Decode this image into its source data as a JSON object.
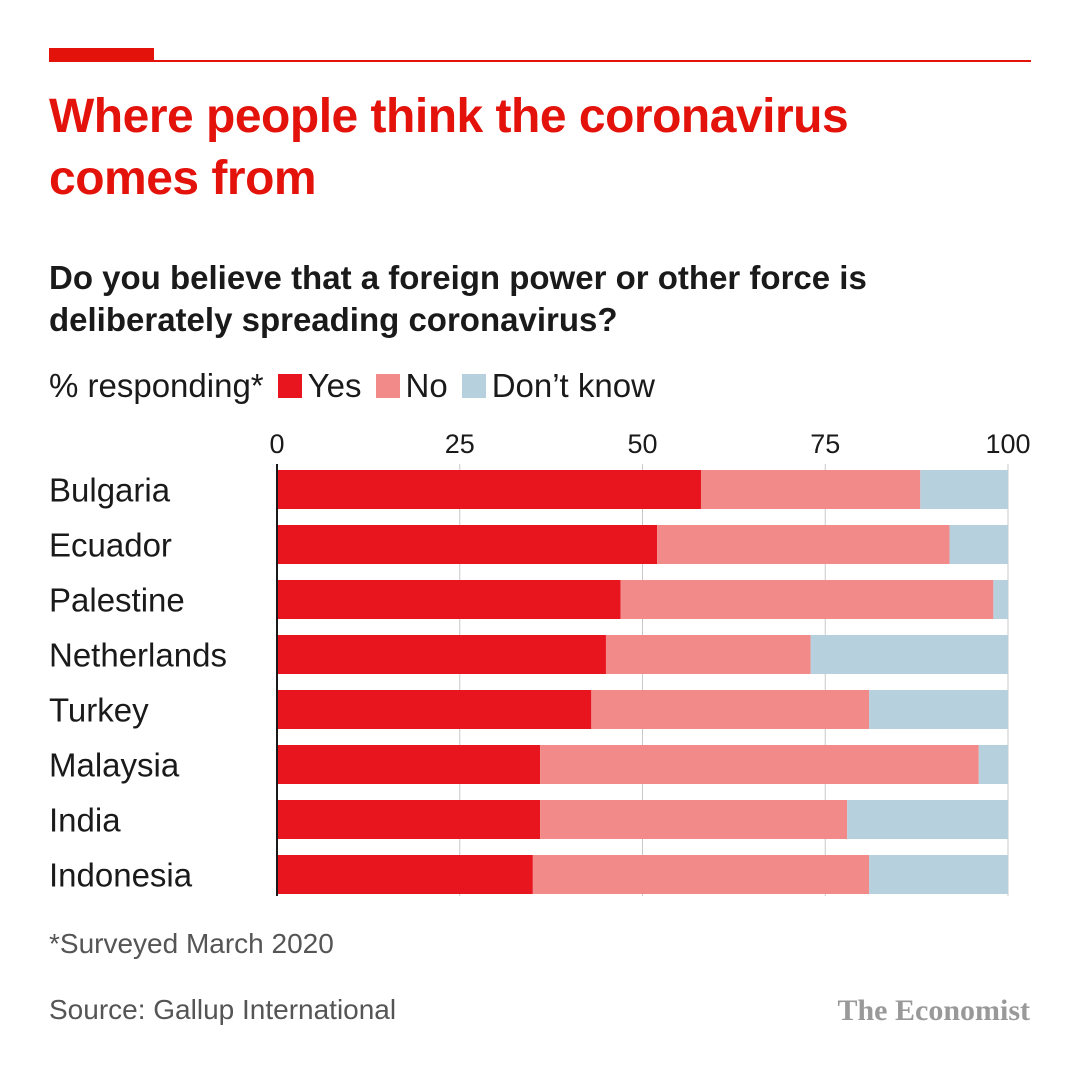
{
  "colors": {
    "accent": "#e3120b",
    "yes": "#e8151f",
    "no": "#f28a8a",
    "dont_know": "#b7d0de",
    "axis": "#1a1a1a",
    "gridline": "#c8c8c8"
  },
  "header": {
    "title": "Where people think the coronavirus comes from",
    "subtitle": "Do you believe that a foreign power or other force is deliberately spreading coronavirus?"
  },
  "legend": {
    "prefix": "% responding*",
    "items": [
      {
        "label": "Yes",
        "color_key": "yes"
      },
      {
        "label": "No",
        "color_key": "no"
      },
      {
        "label": "Don’t know",
        "color_key": "dont_know"
      }
    ]
  },
  "footer": {
    "footnote": "*Surveyed March 2020",
    "source": "Source: Gallup International",
    "brand": "The Economist"
  },
  "chart_data": {
    "type": "bar",
    "orientation": "horizontal",
    "stacked": true,
    "title": "Where people think the coronavirus comes from",
    "subtitle": "Do you believe that a foreign power or other force is deliberately spreading coronavirus?",
    "categories": [
      "Bulgaria",
      "Ecuador",
      "Palestine",
      "Netherlands",
      "Turkey",
      "Malaysia",
      "India",
      "Indonesia"
    ],
    "series": [
      {
        "name": "Yes",
        "values": [
          58,
          52,
          47,
          45,
          43,
          36,
          36,
          35
        ]
      },
      {
        "name": "No",
        "values": [
          30,
          40,
          51,
          28,
          38,
          60,
          42,
          46
        ]
      },
      {
        "name": "Don’t know",
        "values": [
          12,
          8,
          2,
          27,
          19,
          4,
          22,
          19
        ]
      }
    ],
    "xlim": [
      0,
      100
    ],
    "xticks": [
      0,
      25,
      50,
      75,
      100
    ],
    "xaxis_position": "top",
    "grid": true,
    "legend_position": "top-left"
  }
}
